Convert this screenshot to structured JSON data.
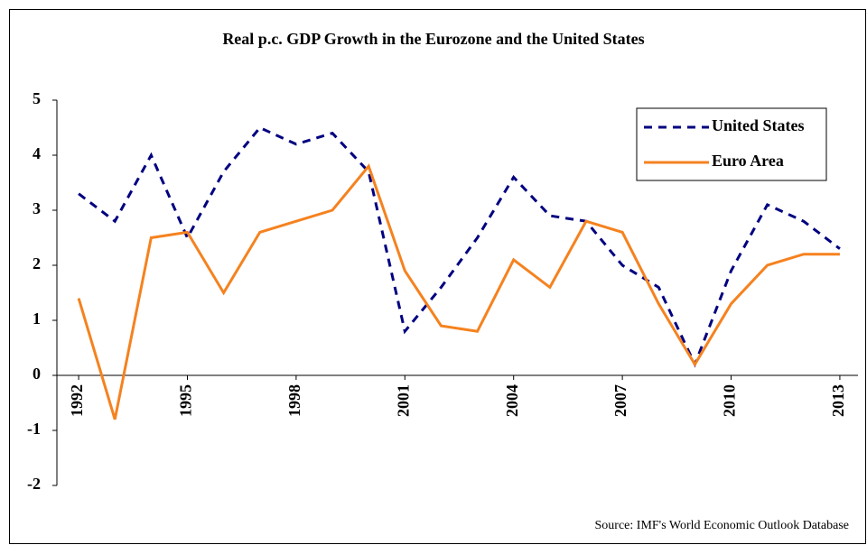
{
  "chart_data": {
    "type": "line",
    "title": "Real p.c. GDP Growth in the Eurozone and the United States",
    "source": "Source: IMF's World Economic Outlook Database",
    "x": [
      1992,
      1993,
      1994,
      1995,
      1996,
      1997,
      1998,
      1999,
      2000,
      2001,
      2002,
      2003,
      2004,
      2005,
      2006,
      2007,
      2008,
      2009,
      2010,
      2011,
      2012,
      2013
    ],
    "xlim": [
      1991.4,
      2013.5
    ],
    "xticks": [
      1992,
      1995,
      1998,
      2001,
      2004,
      2007,
      2010,
      2013
    ],
    "ylim": [
      -2,
      5
    ],
    "yticks": [
      -2,
      -1,
      0,
      1,
      2,
      3,
      4,
      5
    ],
    "legend": "upper right",
    "series": [
      {
        "name": "United States",
        "color": "#000080",
        "dash": true,
        "values": [
          3.3,
          2.8,
          4.0,
          2.5,
          3.7,
          4.5,
          4.2,
          4.4,
          3.7,
          0.8,
          1.6,
          2.5,
          3.6,
          2.9,
          2.8,
          2.0,
          1.6,
          0.2,
          1.9,
          3.1,
          2.8,
          2.3
        ]
      },
      {
        "name": "Euro Area",
        "color": "#f5821f",
        "dash": false,
        "values": [
          1.4,
          -0.8,
          2.5,
          2.6,
          1.5,
          2.6,
          2.8,
          3.0,
          3.8,
          1.9,
          0.9,
          0.8,
          2.1,
          1.6,
          2.8,
          2.6,
          1.3,
          0.2,
          1.3,
          2.0,
          2.2,
          2.2
        ]
      }
    ]
  }
}
